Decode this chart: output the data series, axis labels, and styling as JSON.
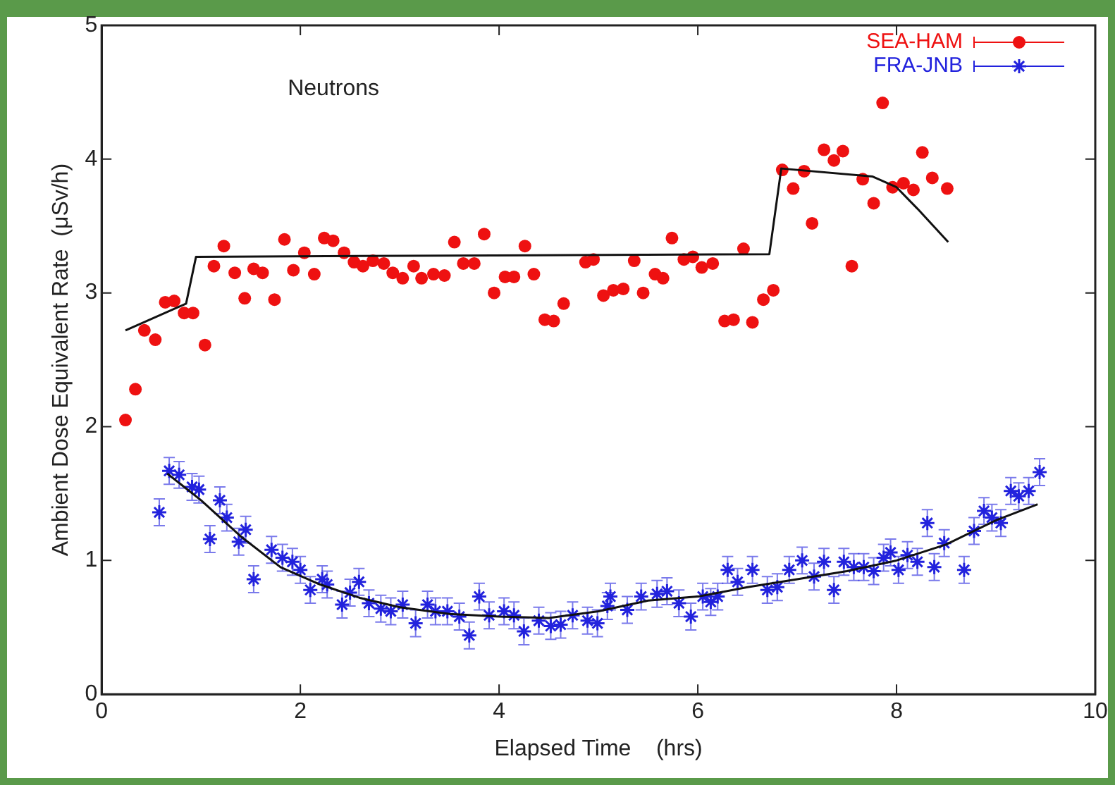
{
  "chart_data": {
    "type": "scatter",
    "xlabel": "Elapsed Time    (hrs)",
    "ylabel": "Ambient Dose Equivalent Rate  (μSv/h)",
    "annotations": [
      "Neutrons"
    ],
    "xlim": [
      0,
      10
    ],
    "xticks": [
      0,
      2,
      4,
      6,
      8,
      10
    ],
    "ylim": [
      0,
      5
    ],
    "yticks": [
      0,
      1,
      2,
      3,
      4,
      5
    ],
    "grid": false,
    "legend": "top right",
    "series": [
      {
        "name": "SEA-HAM",
        "color": "#ee1111",
        "marker": "circle",
        "x": [
          0.24,
          0.34,
          0.43,
          0.54,
          0.64,
          0.73,
          0.83,
          0.92,
          1.04,
          1.13,
          1.23,
          1.34,
          1.44,
          1.53,
          1.62,
          1.74,
          1.84,
          1.93,
          2.04,
          2.14,
          2.24,
          2.33,
          2.44,
          2.54,
          2.63,
          2.73,
          2.84,
          2.93,
          3.03,
          3.14,
          3.22,
          3.34,
          3.45,
          3.55,
          3.64,
          3.75,
          3.85,
          3.95,
          4.06,
          4.15,
          4.26,
          4.35,
          4.46,
          4.55,
          4.65,
          4.87,
          4.95,
          5.05,
          5.15,
          5.25,
          5.36,
          5.45,
          5.57,
          5.65,
          5.74,
          5.86,
          5.95,
          6.04,
          6.15,
          6.27,
          6.36,
          6.46,
          6.55,
          6.66,
          6.76,
          6.85,
          6.96,
          7.07,
          7.15,
          7.27,
          7.37,
          7.46,
          7.55,
          7.66,
          7.77,
          7.86,
          7.96,
          8.07,
          8.17,
          8.26,
          8.36,
          8.51
        ],
        "values": [
          2.05,
          2.28,
          2.72,
          2.65,
          2.93,
          2.94,
          2.85,
          2.85,
          2.61,
          3.2,
          3.35,
          3.15,
          2.96,
          3.18,
          3.15,
          2.95,
          3.4,
          3.17,
          3.3,
          3.14,
          3.41,
          3.39,
          3.3,
          3.23,
          3.2,
          3.24,
          3.22,
          3.15,
          3.11,
          3.2,
          3.11,
          3.14,
          3.13,
          3.38,
          3.22,
          3.22,
          3.44,
          3.0,
          3.12,
          3.12,
          3.35,
          3.14,
          2.8,
          2.79,
          2.92,
          3.23,
          3.25,
          2.98,
          3.02,
          3.03,
          3.24,
          3.0,
          3.14,
          3.11,
          3.41,
          3.25,
          3.27,
          3.19,
          3.22,
          2.79,
          2.8,
          3.33,
          2.78,
          2.95,
          3.02,
          3.92,
          3.78,
          3.91,
          3.52,
          4.07,
          3.99,
          4.06,
          3.2,
          3.85,
          3.67,
          4.42,
          3.79,
          3.82,
          3.77,
          4.05,
          3.86,
          3.78
        ]
      },
      {
        "name": "FRA-JNB",
        "color": "#2222dd",
        "marker": "cross",
        "x": [
          0.58,
          0.68,
          0.78,
          0.91,
          0.98,
          1.09,
          1.19,
          1.26,
          1.38,
          1.45,
          1.53,
          1.71,
          1.82,
          1.92,
          2.0,
          2.1,
          2.22,
          2.27,
          2.42,
          2.5,
          2.59,
          2.69,
          2.81,
          2.91,
          3.03,
          3.16,
          3.28,
          3.36,
          3.48,
          3.6,
          3.7,
          3.8,
          3.9,
          4.05,
          4.15,
          4.25,
          4.4,
          4.52,
          4.62,
          4.74,
          4.89,
          4.99,
          5.09,
          5.12,
          5.29,
          5.43,
          5.59,
          5.69,
          5.81,
          5.93,
          6.05,
          6.13,
          6.2,
          6.3,
          6.4,
          6.55,
          6.7,
          6.8,
          6.92,
          7.05,
          7.17,
          7.27,
          7.37,
          7.47,
          7.57,
          7.67,
          7.77,
          7.87,
          7.94,
          8.02,
          8.11,
          8.21,
          8.31,
          8.38,
          8.48,
          8.68,
          8.78,
          8.88,
          8.96,
          9.05,
          9.15,
          9.23,
          9.33,
          9.44
        ],
        "values": [
          1.36,
          1.67,
          1.64,
          1.55,
          1.53,
          1.16,
          1.45,
          1.32,
          1.14,
          1.23,
          0.86,
          1.08,
          1.02,
          0.99,
          0.93,
          0.78,
          0.86,
          0.82,
          0.67,
          0.76,
          0.84,
          0.68,
          0.64,
          0.62,
          0.67,
          0.53,
          0.67,
          0.62,
          0.62,
          0.58,
          0.44,
          0.73,
          0.59,
          0.62,
          0.59,
          0.47,
          0.55,
          0.51,
          0.52,
          0.59,
          0.55,
          0.53,
          0.66,
          0.73,
          0.63,
          0.73,
          0.75,
          0.77,
          0.68,
          0.58,
          0.73,
          0.69,
          0.73,
          0.93,
          0.84,
          0.93,
          0.78,
          0.8,
          0.93,
          1.0,
          0.88,
          0.99,
          0.78,
          0.99,
          0.95,
          0.95,
          0.92,
          1.02,
          1.06,
          0.93,
          1.04,
          0.99,
          1.28,
          0.95,
          1.13,
          0.93,
          1.22,
          1.37,
          1.32,
          1.28,
          1.52,
          1.48,
          1.52,
          1.66
        ],
        "errors": [
          0.1,
          0.1,
          0.1,
          0.1,
          0.1,
          0.1,
          0.1,
          0.1,
          0.1,
          0.1,
          0.1,
          0.1,
          0.1,
          0.1,
          0.1,
          0.1,
          0.1,
          0.1,
          0.1,
          0.1,
          0.1,
          0.1,
          0.1,
          0.1,
          0.1,
          0.1,
          0.1,
          0.1,
          0.1,
          0.1,
          0.1,
          0.1,
          0.1,
          0.1,
          0.1,
          0.1,
          0.1,
          0.1,
          0.1,
          0.1,
          0.1,
          0.1,
          0.1,
          0.1,
          0.1,
          0.1,
          0.1,
          0.1,
          0.1,
          0.1,
          0.1,
          0.1,
          0.1,
          0.1,
          0.1,
          0.1,
          0.1,
          0.1,
          0.1,
          0.1,
          0.1,
          0.1,
          0.1,
          0.1,
          0.1,
          0.1,
          0.1,
          0.1,
          0.1,
          0.1,
          0.1,
          0.1,
          0.1,
          0.1,
          0.1,
          0.1,
          0.1,
          0.1,
          0.1,
          0.1,
          0.1,
          0.1,
          0.1,
          0.1
        ]
      },
      {
        "type": "line",
        "color": "#111111",
        "marker": "none",
        "x": [
          0.24,
          0.85,
          0.95,
          6.72,
          6.84,
          7.76,
          8.0,
          8.21,
          8.52
        ],
        "values": [
          2.72,
          2.92,
          3.27,
          3.29,
          3.93,
          3.87,
          3.79,
          3.63,
          3.38
        ]
      },
      {
        "type": "line",
        "color": "#111111",
        "marker": "none",
        "x": [
          0.66,
          1.0,
          1.4,
          1.8,
          2.2,
          2.6,
          3.0,
          3.5,
          4.0,
          4.5,
          5.0,
          5.5,
          6.0,
          6.5,
          7.0,
          7.5,
          8.0,
          8.5,
          9.0,
          9.42
        ],
        "values": [
          1.65,
          1.45,
          1.18,
          0.95,
          0.82,
          0.72,
          0.65,
          0.6,
          0.58,
          0.57,
          0.62,
          0.7,
          0.73,
          0.8,
          0.86,
          0.92,
          1.0,
          1.12,
          1.3,
          1.42
        ]
      }
    ]
  }
}
